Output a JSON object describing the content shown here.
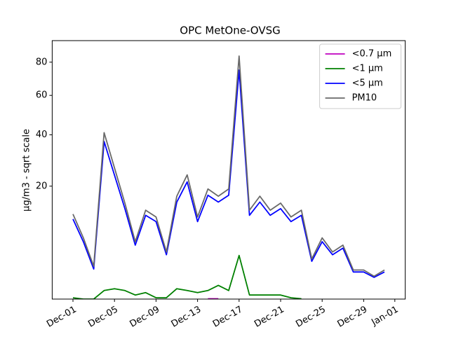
{
  "chart_data": {
    "type": "line",
    "title": "OPC MetOne-OVSG",
    "ylabel": "µg/m3 - sqrt scale",
    "yscale": "sqrt",
    "x": [
      "Dec-01",
      "Dec-02",
      "Dec-03",
      "Dec-04",
      "Dec-05",
      "Dec-06",
      "Dec-07",
      "Dec-08",
      "Dec-09",
      "Dec-10",
      "Dec-11",
      "Dec-12",
      "Dec-13",
      "Dec-14",
      "Dec-15",
      "Dec-16",
      "Dec-17",
      "Dec-18",
      "Dec-19",
      "Dec-20",
      "Dec-21",
      "Dec-22",
      "Dec-23",
      "Dec-24",
      "Dec-25",
      "Dec-26",
      "Dec-27",
      "Dec-28",
      "Dec-29",
      "Dec-30",
      "Dec-31"
    ],
    "series": [
      {
        "name": "<0.7 µm",
        "color": "#bf00bf",
        "values": [
          null,
          null,
          null,
          null,
          null,
          null,
          null,
          null,
          null,
          null,
          null,
          null,
          null,
          0.17,
          0.17,
          null,
          null,
          null,
          null,
          null,
          null,
          null,
          null,
          null,
          null,
          null,
          null,
          null,
          null,
          null,
          null
        ]
      },
      {
        "name": "<1 µm",
        "color": "#008000",
        "values": [
          0.2,
          0.16,
          0.16,
          0.5,
          0.6,
          0.5,
          0.3,
          0.4,
          0.2,
          0.2,
          0.6,
          0.5,
          0.4,
          0.5,
          0.8,
          0.5,
          3.9,
          0.3,
          0.3,
          0.3,
          0.3,
          0.2,
          0.17,
          null,
          null,
          null,
          null,
          null,
          null,
          null,
          null
        ]
      },
      {
        "name": "<5 µm",
        "color": "#0000ff",
        "values": [
          10.8,
          6.1,
          2.2,
          37,
          23.7,
          13.4,
          5.5,
          11.7,
          10.2,
          4,
          15.2,
          21.4,
          10.2,
          17.2,
          15.2,
          17.2,
          75,
          11.7,
          15.2,
          11.7,
          13.4,
          10.2,
          11.7,
          3.1,
          6.1,
          4,
          5,
          1.9,
          1.9,
          1.4,
          1.9
        ]
      },
      {
        "name": "PM10",
        "color": "#696969",
        "values": [
          12,
          6.8,
          2.5,
          41,
          26.3,
          14.9,
          6.1,
          13,
          11.3,
          4.4,
          16.9,
          23.8,
          11.3,
          19.1,
          16.9,
          19.1,
          84,
          13,
          16.9,
          13,
          14.9,
          11.3,
          13,
          3.4,
          6.8,
          4.4,
          5.5,
          2.1,
          2.1,
          1.5,
          2.1
        ]
      }
    ],
    "xlim": [
      "Nov-29",
      "Jan-02"
    ],
    "xticks": [
      "Dec-01",
      "Dec-05",
      "Dec-09",
      "Dec-13",
      "Dec-17",
      "Dec-21",
      "Dec-25",
      "Dec-29",
      "Jan-01"
    ],
    "ylim": [
      0.16,
      94.5
    ],
    "yticks": [
      20,
      40,
      60,
      80
    ],
    "legend": "upper-right"
  }
}
